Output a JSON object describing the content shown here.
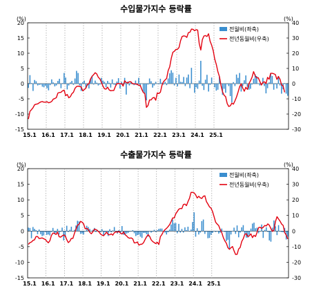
{
  "chart_data": [
    {
      "type": "bar+line",
      "title": "수입물가지수 등락률",
      "left_unit": "(%)",
      "right_unit": "(%)",
      "left_ylim": [
        -15,
        20
      ],
      "right_ylim": [
        -30,
        40
      ],
      "left_ticks": [
        "20",
        "15",
        "10",
        "5",
        "0",
        "-5",
        "-10",
        "-15"
      ],
      "right_ticks": [
        "40",
        "30",
        "20",
        "10",
        "0",
        "-10",
        "-20",
        "-30"
      ],
      "x_tick_labels": [
        "15.1",
        "16.1",
        "17.1",
        "18.1",
        "19.1",
        "20.1",
        "21.1",
        "22.1",
        "23.1",
        "24.1",
        "25.1"
      ],
      "grid": "vertical dotted at each January",
      "legend_position": "top-right",
      "colors": {
        "bar": "#3a8ecf",
        "line": "#e3000f"
      },
      "series": [
        {
          "name": "전월비(좌축)",
          "type": "bar",
          "axis": "left",
          "values": [
            -1.4,
            2.8,
            0.2,
            -2.4,
            1.2,
            0.8,
            -0.6,
            -0.4,
            -0.3,
            -1.0,
            -1.2,
            -0.7,
            -1.5,
            -2.2,
            -0.5,
            1.4,
            0.4,
            -0.9,
            -0.6,
            0.9,
            1.6,
            -1.5,
            0.2,
            3.5,
            2.0,
            -1.9,
            -0.6,
            0.4,
            0.9,
            -0.4,
            1.7,
            4.2,
            3.5,
            -0.6,
            -2.4,
            0.5,
            1.0,
            -1.4,
            -0.7,
            -1.6,
            1.6,
            2.6,
            -0.3,
            1.0,
            0.3,
            -0.6,
            -0.3,
            1.9,
            1.0,
            0.6,
            -1.2,
            0.9,
            0.3,
            -1.3,
            1.4,
            -0.3,
            -0.5,
            0.7,
            1.8,
            -1.6,
            0.6,
            -0.3,
            1.9,
            -3.6,
            0.7,
            -0.6,
            0.4,
            -0.2,
            -0.5,
            1.0,
            -0.5,
            1.9,
            -0.5,
            0.1,
            -2.8,
            -3.3,
            -5.5,
            -0.3,
            1.7,
            0.8,
            -1.3,
            -0.6,
            0.6,
            -0.1,
            -0.2,
            1.6,
            0.3,
            -0.3,
            0.6,
            -0.5,
            1.7,
            3.4,
            4.4,
            3.6,
            -0.6,
            1.9,
            -0.9,
            3.0,
            0.6,
            0.5,
            2.2,
            -0.8,
            2.0,
            3.0,
            -1.5,
            5.2,
            -0.1,
            -3.0,
            -1.2,
            -1.7,
            1.0,
            7.5,
            -0.7,
            -2.1,
            1.3,
            2.9,
            -2.6,
            -0.4,
            2.0,
            0.1,
            -1.2,
            -2.3,
            -2.0,
            2.3,
            0.1,
            -3.7,
            -1.7,
            -3.0,
            -0.2,
            -0.8,
            -4.1,
            -6.2,
            0.5,
            -0.8,
            3.0,
            1.9,
            3.5,
            -2.6,
            -0.8,
            1.1,
            2.7,
            -1.0,
            -2.0,
            -1.7,
            -0.3,
            1.6,
            3.1,
            2.5,
            0.1,
            -0.6,
            -0.5,
            1.9,
            -0.8,
            -3.2,
            -1.5,
            0.4,
            3.4,
            2.5,
            -2.0,
            -0.2,
            -1.6,
            2.5,
            -0.6,
            -3.3,
            -1.8,
            0.2,
            -3.3,
            -4.0
          ]
        },
        {
          "name": "전년동월비(우축)",
          "type": "line",
          "axis": "right",
          "values": [
            -23.3,
            -18.2,
            -17.1,
            -15.8,
            -13.9,
            -13.5,
            -13.3,
            -12.6,
            -12.0,
            -11.8,
            -12.2,
            -12.2,
            -11.9,
            -12.6,
            -12.3,
            -11.7,
            -10.2,
            -9.8,
            -9.2,
            -6.2,
            -5.8,
            -5.7,
            -4.7,
            -4.3,
            -7.9,
            -7.1,
            -9.3,
            -8.6,
            -6.6,
            -5.7,
            -3.1,
            -1.9,
            -1.6,
            -1.9,
            -2.2,
            -4.7,
            -3.9,
            -3.0,
            -0.5,
            -0.1,
            3.1,
            4.8,
            5.9,
            7.2,
            6.4,
            4.2,
            3.2,
            0.9,
            -1.6,
            -3.4,
            -3.6,
            -2.3,
            -4.1,
            -4.7,
            -4.5,
            -4.5,
            -1.9,
            0.0,
            0.1,
            -0.1,
            0.0,
            -1.6,
            1.9,
            0.7,
            0.5,
            1.2,
            1.2,
            0.0,
            -0.1,
            -0.3,
            -0.3,
            -1.1,
            -1.1,
            -3.7,
            -5.8,
            -6.6,
            -15.6,
            -14.4,
            -10.7,
            -10.7,
            -9.4,
            -9.1,
            -10.9,
            -6.1,
            -6.5,
            -5.6,
            -1.1,
            1.3,
            2.4,
            3.4,
            8.6,
            11.1,
            16.7,
            20.6,
            21.3,
            22.5,
            22.6,
            23.8,
            28.3,
            31.0,
            31.4,
            31.2,
            30.4,
            33.5,
            33.8,
            35.9,
            35.7,
            34.8,
            35.5,
            35.2,
            26.3,
            22.1,
            28.9,
            31.3,
            31.6,
            31.0,
            32.8,
            27.9,
            25.3,
            21.7,
            16.1,
            12.6,
            7.9,
            4.7,
            -1.1,
            -5.4,
            -7.6,
            -8.6,
            -13.1,
            -15.0,
            -14.6,
            -12.8,
            -13.5,
            -11.3,
            -8.8,
            -5.6,
            -2.0,
            -0.1,
            -2.9,
            -5.0,
            -2.4,
            -3.8,
            -0.1,
            1.9,
            4.2,
            7.9,
            5.3,
            3.8,
            3.9,
            1.5,
            -0.9,
            0.9,
            1.2,
            0.1,
            4.1,
            2.9,
            6.8,
            6.8,
            6.5,
            6.0,
            2.8,
            4.7,
            2.9,
            -0.8,
            -1.5,
            -5.7
          ]
        }
      ]
    },
    {
      "type": "bar+line",
      "title": "수출물가지수 등락률",
      "left_unit": "(%)",
      "right_unit": "(%)",
      "left_ylim": [
        -15,
        20
      ],
      "right_ylim": [
        -30,
        40
      ],
      "left_ticks": [
        "20",
        "15",
        "10",
        "5",
        "0",
        "-5",
        "-10",
        "-15"
      ],
      "right_ticks": [
        "40",
        "30",
        "20",
        "10",
        "0",
        "-10",
        "-20",
        "-30"
      ],
      "x_tick_labels": [
        "15.1",
        "16.1",
        "17.1",
        "18.1",
        "19.1",
        "20.1",
        "21.1",
        "22.1",
        "23.1",
        "24.1",
        "25.1"
      ],
      "grid": "vertical dotted at each January",
      "legend_position": "top-right",
      "colors": {
        "bar": "#3a8ecf",
        "line": "#e3000f"
      },
      "series": [
        {
          "name": "전월비(좌축)",
          "type": "bar",
          "axis": "left",
          "values": [
            1.1,
            1.0,
            -2.3,
            1.3,
            0.7,
            0.3,
            -1.0,
            0.5,
            -1.0,
            -1.6,
            -1.4,
            -0.3,
            -1.2,
            -1.1,
            -1.4,
            -0.3,
            1.0,
            -1.0,
            -0.6,
            0.7,
            -1.1,
            -0.2,
            1.1,
            -3.0,
            -1.9,
            1.7,
            -0.3,
            0.4,
            1.4,
            0.0,
            0.4,
            1.8,
            3.3,
            3.1,
            -0.9,
            -0.8,
            -1.1,
            0.0,
            1.7,
            1.3,
            0.7,
            0.1,
            0.4,
            1.0,
            -0.3,
            0.4,
            -0.1,
            -0.3,
            0.6,
            -1.4,
            -0.4,
            -0.2,
            -1.6,
            0.6,
            -0.4,
            0.2,
            1.3,
            -0.1,
            -0.8,
            0.3,
            -0.7,
            1.6,
            -1.2,
            -1.1,
            -0.8,
            -0.6,
            -0.2,
            -0.1,
            0.3,
            -0.7,
            -1.6,
            -1.3,
            -1.1,
            -1.8,
            -2.2,
            -0.6,
            -0.6,
            -1.0,
            -1.8,
            0.0,
            -0.5,
            -0.2,
            0.4,
            -0.3,
            0.3,
            0.7,
            0.8,
            0.8,
            -0.1,
            -0.5,
            -1.1,
            -0.4,
            0.5,
            2.1,
            3.7,
            2.5,
            2.6,
            -0.7,
            2.3,
            -0.5,
            0.7,
            -0.5,
            1.2,
            0.3,
            1.4,
            -0.1,
            0.5,
            2.9,
            6.0,
            -1.8,
            0.9,
            -1.1,
            -0.5,
            3.2,
            3.7,
            -0.9,
            -0.2,
            -2.3,
            -2.2,
            -1.2,
            -0.6,
            0.1,
            -0.3,
            -0.1,
            -0.8,
            -0.5,
            0.8,
            -0.1,
            -0.3,
            -3.2,
            -2.8,
            -5.9,
            -1.1,
            0.1,
            1.1,
            -0.9,
            1.8,
            -2.0,
            -0.5,
            1.2,
            1.9,
            -0.9,
            -2.1,
            -2.1,
            -1.2,
            0.8,
            2.4,
            2.7,
            0.9,
            1.1,
            -0.7,
            0.0,
            2.1,
            -2.2,
            0.4,
            1.2,
            -0.3,
            -3.0,
            -3.4,
            1.1,
            3.4,
            1.5,
            -1.3,
            1.9,
            -0.1,
            -0.3,
            -0.4,
            1.0,
            -2.7,
            -1.8
          ]
        },
        {
          "name": "전년동월비(우축)",
          "type": "line",
          "axis": "right",
          "values": [
            -8.5,
            -7.4,
            -7.0,
            -6.0,
            -5.6,
            -3.5,
            -3.5,
            -4.8,
            -4.6,
            -4.4,
            -4.9,
            -5.4,
            -6.5,
            -7.5,
            -6.2,
            -2.8,
            -1.3,
            -1.4,
            -2.2,
            -0.7,
            -3.6,
            -3.9,
            -3.1,
            -2.5,
            -3.0,
            -5.5,
            -7.4,
            -6.5,
            -4.7,
            -4.7,
            -1.5,
            1.2,
            3.8,
            4.3,
            6.2,
            5.7,
            4.6,
            1.5,
            1.7,
            1.0,
            -0.8,
            -1.7,
            -0.5,
            1.2,
            1.0,
            0.2,
            -0.5,
            -1.9,
            -2.6,
            -3.0,
            -1.9,
            -0.7,
            -2.2,
            -2.4,
            -1.8,
            -2.6,
            -1.1,
            -0.5,
            -0.7,
            -0.3,
            -1.3,
            -1.9,
            -0.6,
            -2.3,
            -3.1,
            -4.2,
            -4.6,
            -4.4,
            -5.0,
            -7.6,
            -7.5,
            -7.0,
            -9.0,
            -8.5,
            -8.4,
            -7.5,
            -5.5,
            -3.7,
            -2.3,
            -3.4,
            -5.6,
            -6.7,
            -7.4,
            -8.0,
            -7.2,
            -8.6,
            -3.6,
            -2.2,
            -0.3,
            0.9,
            1.7,
            2.8,
            4.1,
            6.1,
            8.4,
            8.4,
            11.0,
            12.5,
            14.0,
            14.5,
            14.4,
            17.0,
            17.3,
            16.3,
            18.9,
            21.1,
            24.8,
            24.8,
            24.5,
            23.2,
            21.2,
            22.3,
            21.3,
            20.9,
            22.3,
            22.6,
            18.9,
            17.3,
            15.5,
            14.7,
            12.5,
            9.2,
            5.7,
            4.5,
            3.5,
            0.9,
            -1.0,
            -4.1,
            -6.3,
            -7.8,
            -10.7,
            -11.7,
            -10.7,
            -9.9,
            -12.7,
            -15.0,
            -14.9,
            -11.5,
            -10.5,
            -6.7,
            -4.9,
            -2.1,
            -1.7,
            -3.5,
            -3.0,
            -1.8,
            -4.2,
            -2.7,
            -3.5,
            -0.8,
            2.2,
            2.4,
            1.7,
            2.4,
            3.6,
            3.3,
            4.6,
            3.7,
            1.6,
            -0.2,
            0.6,
            6.1,
            9.2,
            7.7,
            6.3,
            4.5,
            3.6,
            -1.0,
            -2.5,
            -5.1
          ]
        }
      ]
    }
  ]
}
